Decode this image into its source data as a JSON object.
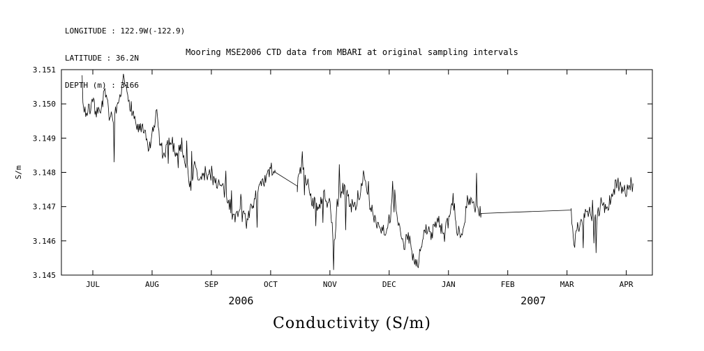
{
  "header": {
    "lines": [
      "LONGITUDE : 122.9W(-122.9)",
      "LATITUDE : 36.2N",
      "DEPTH (m) : 3166"
    ]
  },
  "title": "Mooring MSE2006 CTD data from MBARI at original sampling intervals",
  "chart_data": {
    "type": "line",
    "title": "Mooring MSE2006 CTD data from MBARI at original sampling intervals",
    "xlabel": "Conductivity (S/m)",
    "ylabel": "S/m",
    "grid": false,
    "legend": "none",
    "ylim": [
      3.145,
      3.151
    ],
    "y_ticks": [
      3.145,
      3.146,
      3.147,
      3.148,
      3.149,
      3.15,
      3.151
    ],
    "x_ticks": [
      "JUL",
      "AUG",
      "SEP",
      "OCT",
      "NOV",
      "DEC",
      "JAN",
      "FEB",
      "MAR",
      "APR"
    ],
    "xlim_months": [
      -0.53,
      9.44
    ],
    "year_labels": [
      {
        "label": "2006",
        "x_month": 2.5
      },
      {
        "label": "2007",
        "x_month": 7.43
      }
    ],
    "noise": {
      "amp": 0.00022,
      "spike_prob": 0.07,
      "spike_amp": 0.0011,
      "step": 0.012,
      "seed": 7
    },
    "series": [
      {
        "name": "conductivity",
        "color": "#000000",
        "segments": [
          {
            "noisy": true,
            "points": [
              [
                -0.18,
                3.15
              ],
              [
                -0.1,
                3.1497
              ],
              [
                0.0,
                3.15
              ],
              [
                0.1,
                3.1497
              ],
              [
                0.2,
                3.1503
              ],
              [
                0.28,
                3.1497
              ],
              [
                0.35,
                3.1494
              ],
              [
                0.45,
                3.15
              ],
              [
                0.52,
                3.1507
              ],
              [
                0.58,
                3.1503
              ],
              [
                0.65,
                3.1499
              ],
              [
                0.75,
                3.1493
              ],
              [
                0.85,
                3.1492
              ],
              [
                0.95,
                3.1487
              ],
              [
                1.02,
                3.149
              ],
              [
                1.07,
                3.1499
              ],
              [
                1.12,
                3.149
              ],
              [
                1.2,
                3.1484
              ],
              [
                1.3,
                3.149
              ],
              [
                1.4,
                3.1486
              ],
              [
                1.5,
                3.1488
              ],
              [
                1.58,
                3.1482
              ],
              [
                1.65,
                3.1476
              ],
              [
                1.72,
                3.1482
              ],
              [
                1.8,
                3.1477
              ],
              [
                1.9,
                3.148
              ],
              [
                2.0,
                3.1479
              ],
              [
                2.1,
                3.1477
              ],
              [
                2.2,
                3.1475
              ],
              [
                2.3,
                3.1471
              ],
              [
                2.4,
                3.1466
              ],
              [
                2.5,
                3.1472
              ],
              [
                2.6,
                3.1465
              ],
              [
                2.7,
                3.1471
              ],
              [
                2.8,
                3.1475
              ],
              [
                2.9,
                3.1477
              ],
              [
                3.0,
                3.1481
              ],
              [
                3.08,
                3.148
              ]
            ]
          },
          {
            "noisy": false,
            "points": [
              [
                3.08,
                3.148
              ],
              [
                3.45,
                3.1476
              ]
            ]
          },
          {
            "noisy": true,
            "points": [
              [
                3.45,
                3.1476
              ],
              [
                3.52,
                3.1482
              ],
              [
                3.6,
                3.1478
              ],
              [
                3.7,
                3.1472
              ],
              [
                3.8,
                3.1469
              ],
              [
                3.9,
                3.1473
              ],
              [
                4.0,
                3.147
              ],
              [
                4.07,
                3.1458
              ],
              [
                4.12,
                3.147
              ],
              [
                4.2,
                3.1476
              ],
              [
                4.3,
                3.1473
              ],
              [
                4.4,
                3.1469
              ],
              [
                4.5,
                3.1474
              ],
              [
                4.57,
                3.1479
              ],
              [
                4.65,
                3.1471
              ],
              [
                4.75,
                3.1467
              ],
              [
                4.85,
                3.1464
              ],
              [
                4.95,
                3.1463
              ],
              [
                5.03,
                3.1468
              ],
              [
                5.08,
                3.1475
              ],
              [
                5.15,
                3.1464
              ],
              [
                5.25,
                3.1459
              ],
              [
                5.33,
                3.1461
              ],
              [
                5.4,
                3.1456
              ],
              [
                5.48,
                3.1453
              ],
              [
                5.55,
                3.1459
              ],
              [
                5.63,
                3.1464
              ],
              [
                5.72,
                3.1461
              ],
              [
                5.82,
                3.1467
              ],
              [
                5.92,
                3.1461
              ],
              [
                6.02,
                3.1467
              ],
              [
                6.08,
                3.1472
              ],
              [
                6.15,
                3.1462
              ],
              [
                6.25,
                3.1464
              ],
              [
                6.33,
                3.1473
              ],
              [
                6.42,
                3.147
              ],
              [
                6.5,
                3.1469
              ],
              [
                6.55,
                3.1468
              ]
            ]
          },
          {
            "noisy": false,
            "points": [
              [
                6.55,
                3.1468
              ],
              [
                8.07,
                3.1469
              ]
            ]
          },
          {
            "noisy": true,
            "points": [
              [
                8.07,
                3.1469
              ],
              [
                8.11,
                3.1458
              ],
              [
                8.17,
                3.1463
              ],
              [
                8.25,
                3.1466
              ],
              [
                8.33,
                3.147
              ],
              [
                8.42,
                3.1467
              ],
              [
                8.5,
                3.1466
              ],
              [
                8.58,
                3.1472
              ],
              [
                8.67,
                3.1469
              ],
              [
                8.75,
                3.1473
              ],
              [
                8.83,
                3.1477
              ],
              [
                8.92,
                3.1476
              ],
              [
                9.0,
                3.1474
              ],
              [
                9.08,
                3.1477
              ],
              [
                9.12,
                3.1475
              ]
            ]
          }
        ]
      }
    ]
  }
}
